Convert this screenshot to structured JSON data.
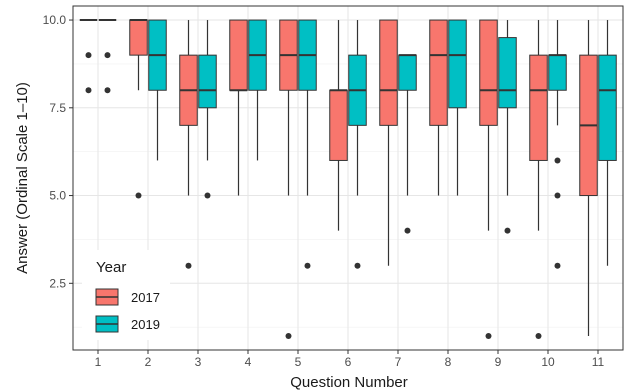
{
  "chart_data": {
    "type": "boxplot",
    "xlabel": "Question Number",
    "ylabel": "Answer (Ordinal Scale 1–10)",
    "categories": [
      "1",
      "2",
      "3",
      "4",
      "5",
      "6",
      "7",
      "8",
      "9",
      "10",
      "11"
    ],
    "yticks": [
      2.5,
      5.0,
      7.5,
      10.0
    ],
    "ytick_labels": [
      "2.5",
      "5.0",
      "7.5",
      "10.0"
    ],
    "ylim": [
      0.6,
      10.4
    ],
    "grid": true,
    "legend": {
      "title": "Year",
      "placement": "bottom-left",
      "entries": [
        {
          "label": "2017",
          "color": "#f8766d"
        },
        {
          "label": "2019",
          "color": "#00bfc4"
        }
      ]
    },
    "series": [
      {
        "name": "2017",
        "color": "#f8766d",
        "boxes": [
          {
            "category": "1",
            "lower_whisker": 10,
            "q1": 10,
            "median": 10,
            "q3": 10,
            "upper_whisker": 10,
            "outliers": [
              9,
              8
            ]
          },
          {
            "category": "2",
            "lower_whisker": 8,
            "q1": 9,
            "median": 10,
            "q3": 10,
            "upper_whisker": 10,
            "outliers": [
              5
            ]
          },
          {
            "category": "3",
            "lower_whisker": 5,
            "q1": 7,
            "median": 8,
            "q3": 9,
            "upper_whisker": 10,
            "outliers": [
              3
            ]
          },
          {
            "category": "4",
            "lower_whisker": 5,
            "q1": 8,
            "median": 8,
            "q3": 10,
            "upper_whisker": 10,
            "outliers": []
          },
          {
            "category": "5",
            "lower_whisker": 5,
            "q1": 8,
            "median": 9,
            "q3": 10,
            "upper_whisker": 10,
            "outliers": [
              1
            ]
          },
          {
            "category": "6",
            "lower_whisker": 4,
            "q1": 6,
            "median": 8,
            "q3": 8,
            "upper_whisker": 10,
            "outliers": []
          },
          {
            "category": "7",
            "lower_whisker": 3,
            "q1": 7,
            "median": 8,
            "q3": 10,
            "upper_whisker": 10,
            "outliers": []
          },
          {
            "category": "8",
            "lower_whisker": 5,
            "q1": 7,
            "median": 9,
            "q3": 10,
            "upper_whisker": 10,
            "outliers": []
          },
          {
            "category": "9",
            "lower_whisker": 4,
            "q1": 7,
            "median": 8,
            "q3": 10,
            "upper_whisker": 10,
            "outliers": [
              1
            ]
          },
          {
            "category": "10",
            "lower_whisker": 4,
            "q1": 6,
            "median": 8,
            "q3": 9,
            "upper_whisker": 10,
            "outliers": [
              1
            ]
          },
          {
            "category": "11",
            "lower_whisker": 1,
            "q1": 5,
            "median": 7,
            "q3": 9,
            "upper_whisker": 10,
            "outliers": []
          }
        ]
      },
      {
        "name": "2019",
        "color": "#00bfc4",
        "boxes": [
          {
            "category": "1",
            "lower_whisker": 10,
            "q1": 10,
            "median": 10,
            "q3": 10,
            "upper_whisker": 10,
            "outliers": [
              9,
              8
            ]
          },
          {
            "category": "2",
            "lower_whisker": 6,
            "q1": 8,
            "median": 9,
            "q3": 10,
            "upper_whisker": 10,
            "outliers": []
          },
          {
            "category": "3",
            "lower_whisker": 6,
            "q1": 7.5,
            "median": 8,
            "q3": 9,
            "upper_whisker": 10,
            "outliers": [
              5
            ]
          },
          {
            "category": "4",
            "lower_whisker": 6,
            "q1": 8,
            "median": 9,
            "q3": 10,
            "upper_whisker": 10,
            "outliers": []
          },
          {
            "category": "5",
            "lower_whisker": 5,
            "q1": 8,
            "median": 9,
            "q3": 10,
            "upper_whisker": 10,
            "outliers": [
              3
            ]
          },
          {
            "category": "6",
            "lower_whisker": 5,
            "q1": 7,
            "median": 8,
            "q3": 9,
            "upper_whisker": 10,
            "outliers": [
              3
            ]
          },
          {
            "category": "7",
            "lower_whisker": 5,
            "q1": 8,
            "median": 9,
            "q3": 9,
            "upper_whisker": 9,
            "outliers": [
              4
            ]
          },
          {
            "category": "8",
            "lower_whisker": 5,
            "q1": 7.5,
            "median": 9,
            "q3": 10,
            "upper_whisker": 10,
            "outliers": []
          },
          {
            "category": "9",
            "lower_whisker": 5,
            "q1": 7.5,
            "median": 8,
            "q3": 9.5,
            "upper_whisker": 10,
            "outliers": [
              4
            ]
          },
          {
            "category": "10",
            "lower_whisker": 7,
            "q1": 8,
            "median": 9,
            "q3": 9,
            "upper_whisker": 10,
            "outliers": [
              6,
              5,
              3
            ]
          },
          {
            "category": "11",
            "lower_whisker": 3,
            "q1": 6,
            "median": 8,
            "q3": 9,
            "upper_whisker": 10,
            "outliers": []
          }
        ]
      }
    ]
  }
}
